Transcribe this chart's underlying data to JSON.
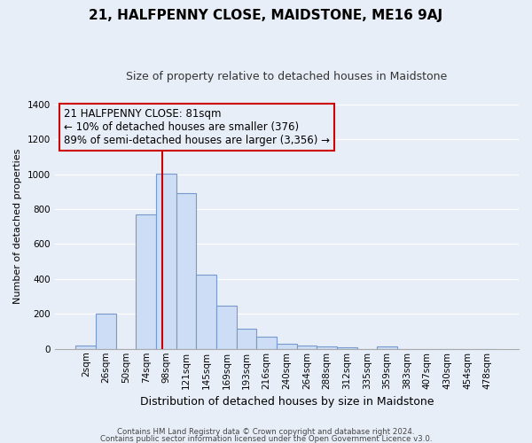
{
  "title": "21, HALFPENNY CLOSE, MAIDSTONE, ME16 9AJ",
  "subtitle": "Size of property relative to detached houses in Maidstone",
  "xlabel": "Distribution of detached houses by size in Maidstone",
  "ylabel": "Number of detached properties",
  "bar_labels": [
    "2sqm",
    "26sqm",
    "50sqm",
    "74sqm",
    "98sqm",
    "121sqm",
    "145sqm",
    "169sqm",
    "193sqm",
    "216sqm",
    "240sqm",
    "264sqm",
    "288sqm",
    "312sqm",
    "335sqm",
    "359sqm",
    "383sqm",
    "407sqm",
    "430sqm",
    "454sqm",
    "478sqm"
  ],
  "bar_values": [
    20,
    200,
    0,
    770,
    1005,
    890,
    425,
    245,
    115,
    70,
    30,
    20,
    15,
    10,
    0,
    15,
    0,
    0,
    0,
    0,
    0
  ],
  "bar_color": "#ccddf5",
  "bar_edge_color": "#7799cc",
  "vline_x": 3.82,
  "vline_color": "#cc0000",
  "annotation_line1": "21 HALFPENNY CLOSE: 81sqm",
  "annotation_line2": "← 10% of detached houses are smaller (376)",
  "annotation_line3": "89% of semi-detached houses are larger (3,356) →",
  "box_edge_color": "#cc0000",
  "ylim": [
    0,
    1400
  ],
  "yticks": [
    0,
    200,
    400,
    600,
    800,
    1000,
    1200,
    1400
  ],
  "footer1": "Contains HM Land Registry data © Crown copyright and database right 2024.",
  "footer2": "Contains public sector information licensed under the Open Government Licence v3.0.",
  "bg_color": "#e8eef8",
  "grid_color": "#ffffff",
  "title_fontsize": 11,
  "subtitle_fontsize": 9,
  "xlabel_fontsize": 9,
  "ylabel_fontsize": 8,
  "tick_fontsize": 7.5
}
